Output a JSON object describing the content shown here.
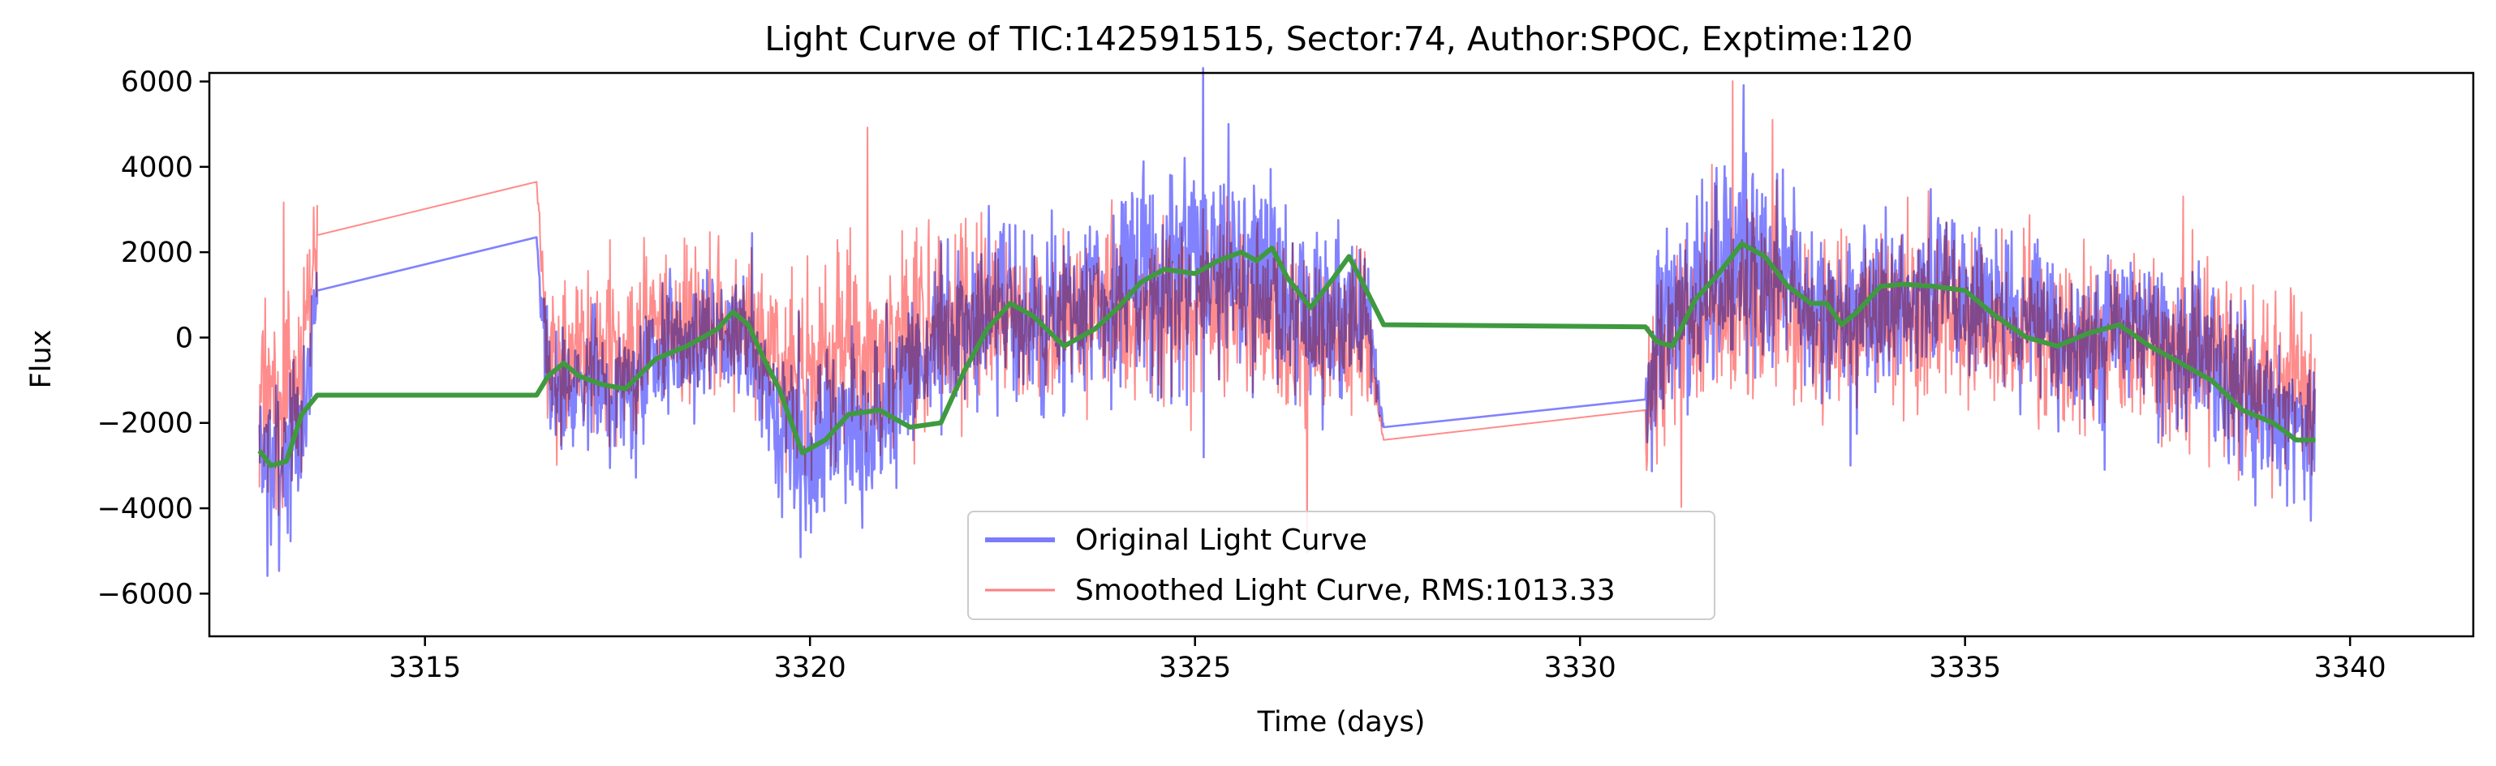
{
  "chart_data": {
    "type": "line",
    "title": "Light Curve of TIC:142591515, Sector:74, Author:SPOC, Exptime:120",
    "xlabel": "Time (days)",
    "ylabel": "Flux",
    "xlim": [
      3312.2,
      3341.6
    ],
    "ylim": [
      -7000,
      6200
    ],
    "xticks": [
      3315,
      3320,
      3325,
      3330,
      3335,
      3340
    ],
    "xtick_labels": [
      "3315",
      "3320",
      "3325",
      "3330",
      "3335",
      "3340"
    ],
    "yticks": [
      -6000,
      -4000,
      -2000,
      0,
      2000,
      4000,
      6000
    ],
    "ytick_labels": [
      "−6000",
      "−4000",
      "−2000",
      "0",
      "2000",
      "4000",
      "6000"
    ],
    "grid": false,
    "legend_position": "lower center",
    "series": [
      {
        "name": "Original Light Curve",
        "color": "#7b7bff",
        "style": "noisy-line",
        "x": [
          3312.85,
          3313.0,
          3313.2,
          3313.4,
          3313.6,
          3316.45,
          3316.6,
          3317.0,
          3317.5,
          3318.0,
          3318.5,
          3319.0,
          3319.3,
          3319.6,
          3319.9,
          3320.3,
          3320.8,
          3321.3,
          3321.8,
          3322.3,
          3322.8,
          3323.3,
          3323.8,
          3324.3,
          3324.8,
          3325.3,
          3325.8,
          3326.3,
          3326.8,
          3327.2,
          3327.45,
          3330.85,
          3331.0,
          3331.4,
          3331.8,
          3332.2,
          3332.6,
          3333.0,
          3333.4,
          3333.8,
          3334.2,
          3334.7,
          3335.2,
          3335.7,
          3336.2,
          3336.7,
          3337.2,
          3337.7,
          3338.2,
          3338.7,
          3339.2,
          3339.55
        ],
        "values": [
          -2500,
          -2900,
          -2700,
          -2100,
          1100,
          2350,
          -1300,
          -1000,
          -1200,
          -400,
          -100,
          300,
          -600,
          -2200,
          -2800,
          -2000,
          -2100,
          -900,
          200,
          700,
          400,
          400,
          900,
          1200,
          1600,
          1700,
          1800,
          500,
          300,
          800,
          -2100,
          -1450,
          -500,
          900,
          1500,
          2000,
          1600,
          500,
          700,
          800,
          1000,
          1100,
          800,
          500,
          0,
          100,
          300,
          -300,
          -700,
          -1800,
          -2000,
          -2200
        ],
        "amplitude": [
          1500,
          1800,
          1700,
          1500,
          1000,
          0,
          1200,
          1300,
          1300,
          1300,
          1300,
          1200,
          1200,
          1500,
          1800,
          1700,
          1700,
          1700,
          1800,
          1900,
          1800,
          1800,
          1900,
          2000,
          2100,
          2100,
          2000,
          1800,
          1800,
          1700,
          0,
          1200,
          1900,
          2000,
          2100,
          2100,
          2000,
          1800,
          1500,
          1500,
          1600,
          1600,
          1500,
          1500,
          1500,
          1500,
          1500,
          1600,
          1700,
          1700,
          1600,
          1500
        ]
      },
      {
        "name": "Smoothed Light Curve, RMS:1013.33",
        "color": "#ff7f7f",
        "style": "noisy-line",
        "x": [
          3312.85,
          3313.0,
          3313.2,
          3313.4,
          3313.6,
          3316.45,
          3316.6,
          3317.0,
          3317.5,
          3318.0,
          3318.5,
          3319.0,
          3319.3,
          3319.6,
          3319.9,
          3320.3,
          3320.8,
          3321.3,
          3321.8,
          3322.3,
          3322.8,
          3323.3,
          3323.8,
          3324.3,
          3324.8,
          3325.3,
          3325.8,
          3326.3,
          3326.8,
          3327.2,
          3327.45,
          3330.85,
          3331.0,
          3331.4,
          3331.8,
          3332.2,
          3332.6,
          3333.0,
          3333.4,
          3333.8,
          3334.2,
          3334.7,
          3335.2,
          3335.7,
          3336.2,
          3336.7,
          3337.2,
          3337.7,
          3338.2,
          3338.7,
          3339.2,
          3339.55
        ],
        "values": [
          -1200,
          -1500,
          -1300,
          -1000,
          2400,
          3650,
          -600,
          -300,
          -500,
          200,
          400,
          500,
          0,
          -500,
          -900,
          -400,
          -500,
          0,
          400,
          600,
          300,
          300,
          500,
          600,
          700,
          800,
          800,
          200,
          0,
          300,
          -2400,
          -1700,
          -300,
          400,
          700,
          900,
          700,
          100,
          300,
          400,
          500,
          500,
          300,
          100,
          -200,
          -100,
          0,
          -300,
          -500,
          -900,
          -1000,
          -1100
        ],
        "amplitude": [
          1800,
          2000,
          2000,
          1900,
          800,
          0,
          1500,
          1600,
          1600,
          1600,
          1600,
          1500,
          1600,
          1800,
          2000,
          2100,
          2000,
          1900,
          1900,
          1800,
          1700,
          1700,
          1700,
          1700,
          1700,
          1700,
          1700,
          1700,
          1700,
          1600,
          0,
          1500,
          1800,
          1800,
          1800,
          1800,
          1700,
          1700,
          1700,
          1700,
          1700,
          1700,
          1700,
          1700,
          1700,
          1700,
          1700,
          1800,
          1800,
          1800,
          1800,
          1700
        ]
      },
      {
        "name": "",
        "color": "#3f9a3f",
        "style": "line",
        "x": [
          3312.85,
          3313.0,
          3313.2,
          3313.4,
          3313.6,
          3316.45,
          3316.6,
          3316.8,
          3317.0,
          3317.3,
          3317.6,
          3318.0,
          3318.4,
          3318.8,
          3319.0,
          3319.2,
          3319.4,
          3319.6,
          3319.9,
          3320.2,
          3320.5,
          3320.9,
          3321.3,
          3321.7,
          3322.0,
          3322.3,
          3322.6,
          3322.9,
          3323.3,
          3323.7,
          3324.0,
          3324.3,
          3324.6,
          3325.0,
          3325.3,
          3325.6,
          3325.8,
          3326.0,
          3326.2,
          3326.5,
          3326.8,
          3327.0,
          3327.2,
          3327.45,
          3330.85,
          3331.0,
          3331.2,
          3331.5,
          3331.8,
          3332.1,
          3332.4,
          3332.7,
          3333.0,
          3333.2,
          3333.4,
          3333.6,
          3333.9,
          3334.2,
          3334.6,
          3335.0,
          3335.4,
          3335.8,
          3336.2,
          3336.6,
          3337.0,
          3337.4,
          3337.8,
          3338.2,
          3338.6,
          3339.0,
          3339.3,
          3339.55
        ],
        "values": [
          -2650,
          -3000,
          -2900,
          -1800,
          -1350,
          -1350,
          -900,
          -600,
          -900,
          -1100,
          -1200,
          -500,
          -200,
          200,
          600,
          300,
          -500,
          -1200,
          -2700,
          -2400,
          -1800,
          -1700,
          -2100,
          -2000,
          -800,
          200,
          800,
          500,
          -200,
          200,
          700,
          1300,
          1600,
          1500,
          1800,
          2000,
          1800,
          2100,
          1400,
          700,
          1400,
          1900,
          1200,
          300,
          250,
          -100,
          -200,
          900,
          1500,
          2200,
          1900,
          1200,
          800,
          800,
          300,
          600,
          1200,
          1250,
          1200,
          1100,
          500,
          0,
          -200,
          100,
          300,
          -200,
          -600,
          -1000,
          -1700,
          -2000,
          -2400,
          -2400
        ]
      }
    ]
  }
}
